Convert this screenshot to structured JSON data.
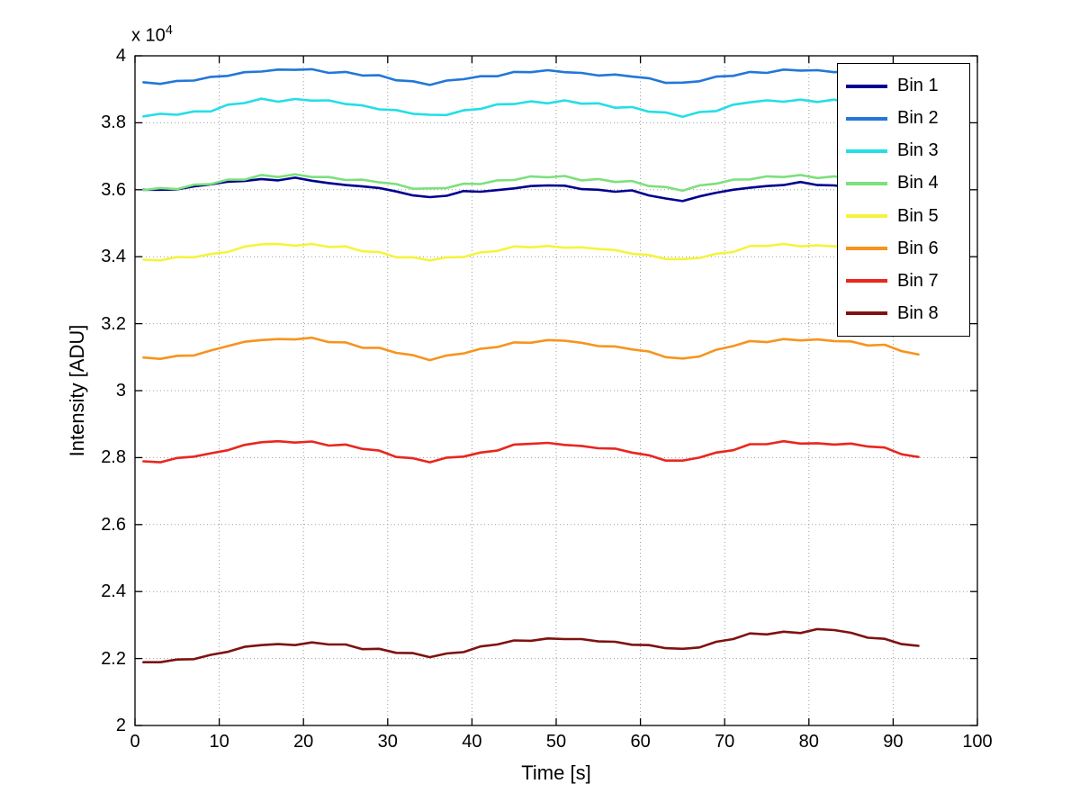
{
  "figure": {
    "background": "#ffffff"
  },
  "chart_data": {
    "type": "line",
    "title": "",
    "xlabel": "Time [s]",
    "ylabel": "Intensity [ADU]",
    "offset_label": {
      "prefix": "x 10",
      "exponent": "4"
    },
    "y_unit_multiplier": 10000,
    "xlim": [
      0,
      100
    ],
    "ylim": [
      2,
      4
    ],
    "x_ticks": [
      0,
      10,
      20,
      30,
      40,
      50,
      60,
      70,
      80,
      90,
      100
    ],
    "y_ticks": [
      2,
      2.2,
      2.4,
      2.6,
      2.8,
      3,
      3.2,
      3.4,
      3.6,
      3.8,
      4
    ],
    "grid": true,
    "legend_position": "northeast",
    "x": [
      1,
      3,
      5,
      7,
      9,
      11,
      13,
      15,
      17,
      19,
      21,
      23,
      25,
      27,
      29,
      31,
      33,
      35,
      37,
      39,
      41,
      43,
      45,
      47,
      49,
      51,
      53,
      55,
      57,
      59,
      61,
      63,
      65,
      67,
      69,
      71,
      73,
      75,
      77,
      79,
      81,
      83,
      85,
      87,
      89,
      91,
      93
    ],
    "series": [
      {
        "name": "Bin 1",
        "color": "#00008F",
        "values": [
          3.6,
          3.6,
          3.601,
          3.61,
          3.616,
          3.624,
          3.626,
          3.632,
          3.628,
          3.636,
          3.627,
          3.62,
          3.614,
          3.61,
          3.605,
          3.595,
          3.583,
          3.578,
          3.582,
          3.596,
          3.594,
          3.599,
          3.604,
          3.611,
          3.613,
          3.612,
          3.602,
          3.6,
          3.594,
          3.598,
          3.583,
          3.574,
          3.566,
          3.58,
          3.591,
          3.6,
          3.606,
          3.611,
          3.614,
          3.623,
          3.614,
          3.613,
          3.607,
          3.607,
          3.604,
          3.596,
          3.587
        ]
      },
      {
        "name": "Bin 2",
        "color": "#2277D8",
        "values": [
          3.921,
          3.916,
          3.925,
          3.926,
          3.937,
          3.94,
          3.951,
          3.953,
          3.959,
          3.958,
          3.96,
          3.949,
          3.952,
          3.941,
          3.942,
          3.927,
          3.924,
          3.913,
          3.926,
          3.93,
          3.939,
          3.939,
          3.952,
          3.951,
          3.957,
          3.951,
          3.949,
          3.941,
          3.944,
          3.938,
          3.933,
          3.919,
          3.92,
          3.924,
          3.938,
          3.94,
          3.952,
          3.949,
          3.959,
          3.956,
          3.957,
          3.951,
          3.954,
          3.946,
          3.948,
          3.935,
          3.934
        ]
      },
      {
        "name": "Bin 3",
        "color": "#24DEE6",
        "values": [
          3.819,
          3.827,
          3.824,
          3.834,
          3.834,
          3.854,
          3.859,
          3.872,
          3.863,
          3.871,
          3.866,
          3.867,
          3.856,
          3.852,
          3.84,
          3.838,
          3.827,
          3.824,
          3.823,
          3.837,
          3.841,
          3.855,
          3.856,
          3.864,
          3.858,
          3.867,
          3.857,
          3.858,
          3.845,
          3.847,
          3.833,
          3.831,
          3.818,
          3.832,
          3.835,
          3.854,
          3.861,
          3.867,
          3.863,
          3.869,
          3.862,
          3.869,
          3.859,
          3.858,
          3.847,
          3.848,
          3.839
        ]
      },
      {
        "name": "Bin 4",
        "color": "#7CE07C",
        "values": [
          3.599,
          3.605,
          3.602,
          3.615,
          3.617,
          3.63,
          3.63,
          3.644,
          3.638,
          3.646,
          3.638,
          3.638,
          3.629,
          3.63,
          3.622,
          3.617,
          3.603,
          3.604,
          3.605,
          3.618,
          3.617,
          3.628,
          3.629,
          3.64,
          3.637,
          3.641,
          3.628,
          3.632,
          3.623,
          3.626,
          3.611,
          3.608,
          3.597,
          3.613,
          3.618,
          3.63,
          3.631,
          3.64,
          3.638,
          3.644,
          3.635,
          3.64,
          3.631,
          3.635,
          3.628,
          3.625,
          3.613
        ]
      },
      {
        "name": "Bin 5",
        "color": "#F4F43E",
        "values": [
          3.391,
          3.389,
          3.399,
          3.398,
          3.408,
          3.414,
          3.43,
          3.437,
          3.438,
          3.433,
          3.438,
          3.429,
          3.431,
          3.416,
          3.414,
          3.398,
          3.398,
          3.389,
          3.398,
          3.399,
          3.413,
          3.417,
          3.431,
          3.428,
          3.432,
          3.427,
          3.428,
          3.423,
          3.42,
          3.409,
          3.405,
          3.393,
          3.393,
          3.396,
          3.409,
          3.414,
          3.432,
          3.432,
          3.438,
          3.431,
          3.434,
          3.431,
          3.434,
          3.422,
          3.421,
          3.408,
          3.41
        ]
      },
      {
        "name": "Bin 6",
        "color": "#F7941E",
        "values": [
          3.099,
          3.095,
          3.104,
          3.105,
          3.12,
          3.133,
          3.146,
          3.151,
          3.154,
          3.153,
          3.158,
          3.145,
          3.144,
          3.128,
          3.128,
          3.113,
          3.106,
          3.091,
          3.105,
          3.111,
          3.125,
          3.13,
          3.144,
          3.143,
          3.151,
          3.149,
          3.143,
          3.133,
          3.132,
          3.123,
          3.117,
          3.1,
          3.096,
          3.102,
          3.122,
          3.133,
          3.148,
          3.145,
          3.154,
          3.15,
          3.153,
          3.148,
          3.147,
          3.135,
          3.137,
          3.118,
          3.108
        ]
      },
      {
        "name": "Bin 7",
        "color": "#E8271E",
        "values": [
          2.789,
          2.786,
          2.799,
          2.803,
          2.813,
          2.822,
          2.838,
          2.846,
          2.849,
          2.845,
          2.848,
          2.836,
          2.839,
          2.826,
          2.821,
          2.802,
          2.798,
          2.786,
          2.8,
          2.803,
          2.815,
          2.821,
          2.839,
          2.841,
          2.844,
          2.838,
          2.835,
          2.828,
          2.827,
          2.815,
          2.807,
          2.791,
          2.791,
          2.8,
          2.815,
          2.822,
          2.84,
          2.84,
          2.849,
          2.842,
          2.843,
          2.839,
          2.842,
          2.833,
          2.83,
          2.81,
          2.802
        ]
      },
      {
        "name": "Bin 8",
        "color": "#7E1210",
        "values": [
          2.189,
          2.189,
          2.197,
          2.198,
          2.211,
          2.22,
          2.235,
          2.24,
          2.243,
          2.24,
          2.248,
          2.242,
          2.242,
          2.228,
          2.229,
          2.217,
          2.216,
          2.204,
          2.215,
          2.219,
          2.236,
          2.242,
          2.254,
          2.253,
          2.26,
          2.258,
          2.258,
          2.251,
          2.25,
          2.241,
          2.24,
          2.231,
          2.229,
          2.233,
          2.25,
          2.258,
          2.275,
          2.272,
          2.28,
          2.276,
          2.288,
          2.285,
          2.277,
          2.262,
          2.259,
          2.243,
          2.238
        ]
      }
    ]
  }
}
